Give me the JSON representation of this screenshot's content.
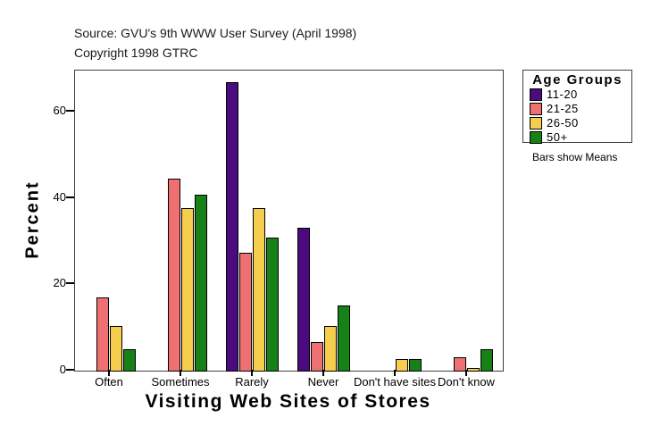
{
  "header": {
    "source_line": "Source: GVU's 9th WWW User Survey (April 1998)",
    "copyright_line": "Copyright 1998 GTRC"
  },
  "legend": {
    "title": "Age Groups",
    "note": "Bars show Means",
    "items": [
      {
        "label": "11-20",
        "color": "#4B0A7D"
      },
      {
        "label": "21-25",
        "color": "#EE7070"
      },
      {
        "label": "26-50",
        "color": "#F6CE4D"
      },
      {
        "label": "50+",
        "color": "#178117"
      }
    ]
  },
  "chart_data": {
    "type": "bar",
    "title": "",
    "xlabel": "Visiting Web Sites of Stores",
    "ylabel": "Percent",
    "categories": [
      "Often",
      "Sometimes",
      "Rarely",
      "Never",
      "Don't have sites",
      "Don't know"
    ],
    "series": [
      {
        "name": "11-20",
        "color": "#4B0A7D",
        "values": [
          null,
          null,
          67.0,
          33.4,
          null,
          null
        ]
      },
      {
        "name": "21-25",
        "color": "#EE7070",
        "values": [
          17.1,
          44.8,
          27.6,
          6.9,
          null,
          3.3
        ]
      },
      {
        "name": "26-50",
        "color": "#F6CE4D",
        "values": [
          10.5,
          37.8,
          37.8,
          10.5,
          2.8,
          0.5
        ]
      },
      {
        "name": "50+",
        "color": "#178117",
        "values": [
          5.1,
          40.9,
          31.0,
          15.4,
          2.9,
          5.1
        ]
      }
    ],
    "y_ticks": [
      0,
      20,
      40,
      60
    ],
    "ylim": [
      0,
      69.6
    ],
    "grid": false,
    "legend_position": "right",
    "bar_note": "Bars show Means"
  }
}
